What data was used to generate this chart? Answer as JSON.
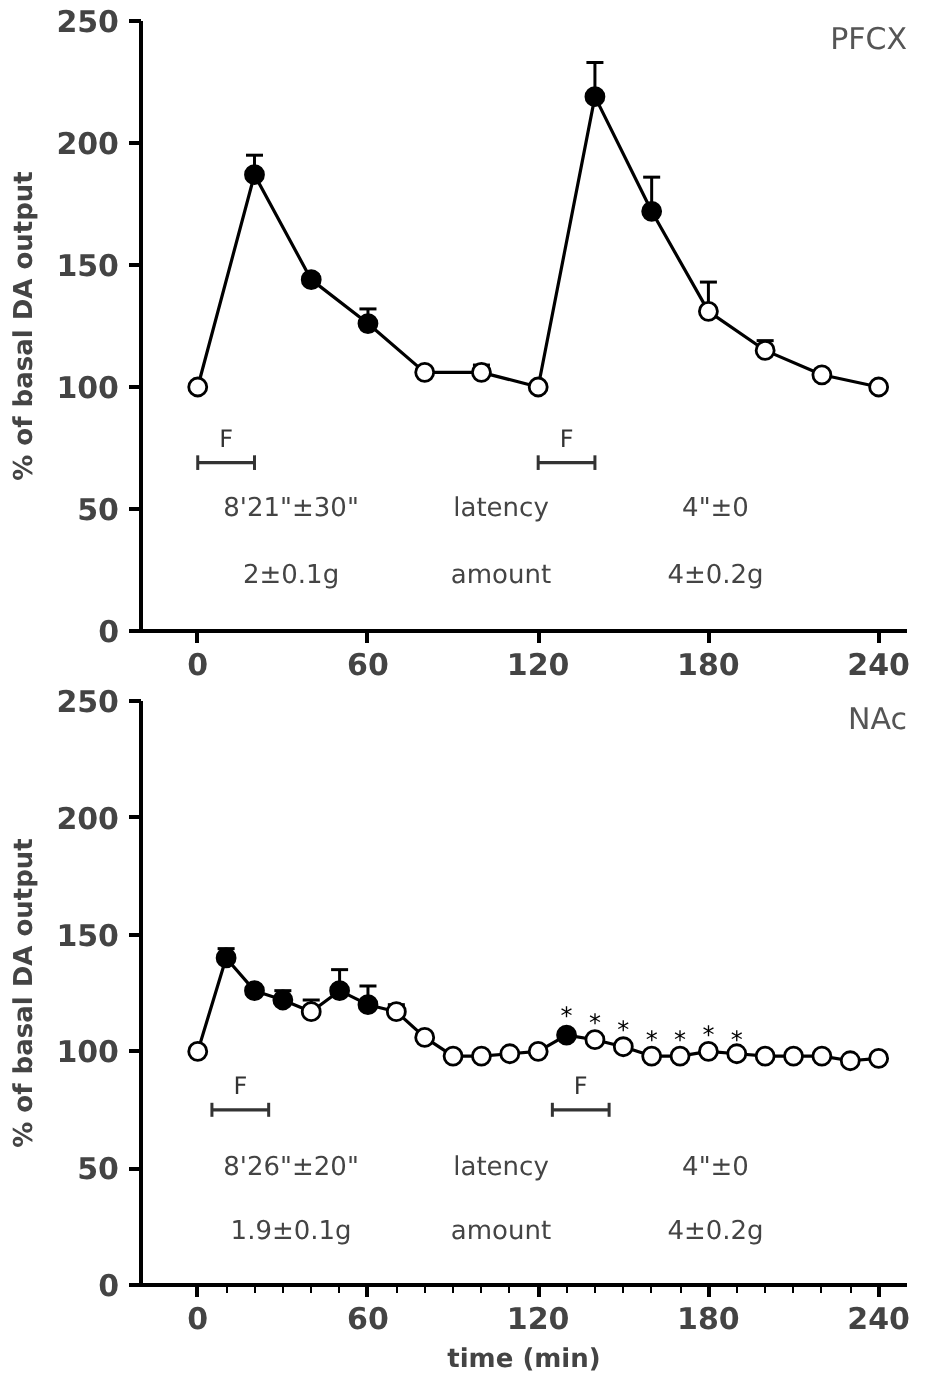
{
  "chart_data": [
    {
      "type": "line",
      "title": "PFCX",
      "ylabel": "% of basal DA output",
      "x": [
        0,
        20,
        40,
        60,
        80,
        100,
        120,
        140,
        160,
        180,
        200,
        220,
        240
      ],
      "xlim": [
        -20,
        250
      ],
      "ylim": [
        0,
        250
      ],
      "xticks": [
        0,
        60,
        120,
        180,
        240
      ],
      "yticks": [
        0,
        50,
        100,
        150,
        200,
        250
      ],
      "grid": false,
      "marker": "none",
      "line_style": "solid",
      "series": [
        {
          "color": "#000000",
          "values": [
            100,
            187,
            144,
            126,
            106,
            106,
            100,
            219,
            172,
            131,
            115,
            105,
            100
          ]
        },
        {
          "type": "scatter",
          "marker": "circle",
          "color": "#000000",
          "x": [
            20,
            40,
            60,
            140,
            160
          ],
          "values": [
            187,
            144,
            126,
            219,
            172
          ],
          "errors": [
            [
              187,
              195
            ],
            [
              144,
              146
            ],
            [
              126,
              132
            ],
            [
              219,
              233
            ],
            [
              172,
              186
            ]
          ]
        },
        {
          "type": "scatter",
          "marker": "circle",
          "color": "#ffffff",
          "x": [
            0,
            80,
            100,
            120,
            180,
            200,
            220,
            240
          ],
          "values": [
            100,
            106,
            106,
            100,
            131,
            115,
            105,
            100
          ],
          "errors": [
            null,
            null,
            [
              106,
              109
            ],
            null,
            [
              131,
              143
            ],
            [
              115,
              119
            ],
            null,
            null
          ]
        },
        {
          "type": "line",
          "name": "F",
          "color": "#333333",
          "x": [
            0,
            20
          ],
          "values": [
            69,
            69
          ],
          "errors": [
            [
              66,
              72
            ],
            [
              66,
              72
            ]
          ]
        },
        {
          "type": "line",
          "name": "F",
          "color": "#333333",
          "x": [
            120,
            140
          ],
          "values": [
            69,
            69
          ],
          "errors": [
            [
              66,
              72
            ],
            [
              66,
              72
            ]
          ]
        }
      ],
      "annotations": [
        "8'21\"±30\"",
        "latency",
        "4\"±0",
        "2±0.1g",
        "amount",
        "4±0.2g"
      ]
    },
    {
      "type": "line",
      "title": "NAc",
      "xlabel": "time (min)",
      "ylabel": "% of basal DA output",
      "x": [
        0,
        10,
        20,
        30,
        40,
        50,
        60,
        70,
        80,
        90,
        100,
        110,
        120,
        130,
        140,
        150,
        160,
        170,
        180,
        190,
        200,
        210,
        220,
        230,
        240
      ],
      "xlim": [
        -20,
        250
      ],
      "ylim": [
        0,
        250
      ],
      "xticks": [
        0,
        {
          "value": 10,
          "label": null
        },
        {
          "value": 20,
          "label": null
        },
        {
          "value": 30,
          "label": null
        },
        {
          "value": 40,
          "label": null
        },
        {
          "value": 50,
          "label": null
        },
        60,
        {
          "value": 70,
          "label": null
        },
        {
          "value": 80,
          "label": null
        },
        {
          "value": 90,
          "label": null
        },
        {
          "value": 100,
          "label": null
        },
        {
          "value": 110,
          "label": null
        },
        120,
        {
          "value": 130,
          "label": null
        },
        {
          "value": 140,
          "label": null
        },
        {
          "value": 150,
          "label": null
        },
        {
          "value": 160,
          "label": null
        },
        {
          "value": 170,
          "label": null
        },
        180,
        {
          "value": 190,
          "label": null
        },
        {
          "value": 200,
          "label": null
        },
        {
          "value": 210,
          "label": null
        },
        {
          "value": 220,
          "label": null
        },
        {
          "value": 230,
          "label": null
        },
        240
      ],
      "yticks": [
        0,
        50,
        100,
        150,
        200,
        250
      ],
      "grid": false,
      "marker": "none",
      "line_style": "solid",
      "series": [
        {
          "color": "#000000",
          "values": [
            100,
            140,
            126,
            122,
            117,
            126,
            120,
            117,
            106,
            98,
            98,
            99,
            100,
            107,
            105,
            102,
            98,
            98,
            100,
            99,
            98,
            98,
            98,
            96,
            97
          ]
        },
        {
          "type": "scatter",
          "marker": "circle",
          "color": "#000000",
          "x": [
            10,
            20,
            30,
            50,
            60,
            130
          ],
          "values": [
            140,
            126,
            122,
            126,
            120,
            107
          ],
          "errors": [
            [
              140,
              144
            ],
            null,
            [
              122,
              126
            ],
            [
              126,
              135
            ],
            [
              120,
              128
            ],
            null
          ]
        },
        {
          "type": "scatter",
          "marker": "circle",
          "color": "#ffffff",
          "x": [
            0,
            40,
            70,
            80,
            90,
            100,
            110,
            120,
            140,
            150,
            160,
            170,
            180,
            190,
            200,
            210,
            220,
            230,
            240
          ],
          "values": [
            100,
            117,
            117,
            106,
            98,
            98,
            99,
            100,
            105,
            102,
            98,
            98,
            100,
            99,
            98,
            98,
            98,
            96,
            97
          ],
          "errors": [
            null,
            [
              117,
              122
            ],
            [
              117,
              120
            ],
            null,
            null,
            null,
            null,
            null,
            null,
            null,
            null,
            null,
            null,
            null,
            null,
            null,
            null,
            null,
            null
          ]
        },
        {
          "type": "line",
          "name": "F",
          "color": "#333333",
          "x": [
            5,
            25
          ],
          "values": [
            75,
            75
          ],
          "errors": [
            [
              72,
              78
            ],
            [
              72,
              78
            ]
          ]
        },
        {
          "type": "line",
          "name": "F",
          "color": "#333333",
          "x": [
            125,
            145
          ],
          "values": [
            75,
            75
          ],
          "errors": [
            [
              72,
              78
            ],
            [
              72,
              78
            ]
          ]
        }
      ],
      "annotations": [
        "8'26\"±20\"",
        "latency",
        "4\"±0",
        "1.9±0.1g",
        "amount",
        "4±0.2g",
        {
          "text": "*",
          "x": 130,
          "y": 115
        },
        {
          "text": "*",
          "x": 140,
          "y": 112
        },
        {
          "text": "*",
          "x": 150,
          "y": 109
        },
        {
          "text": "*",
          "x": 160,
          "y": 105
        },
        {
          "text": "*",
          "x": 170,
          "y": 105
        },
        {
          "text": "*",
          "x": 180,
          "y": 107
        },
        {
          "text": "*",
          "x": 190,
          "y": 105
        }
      ]
    }
  ]
}
